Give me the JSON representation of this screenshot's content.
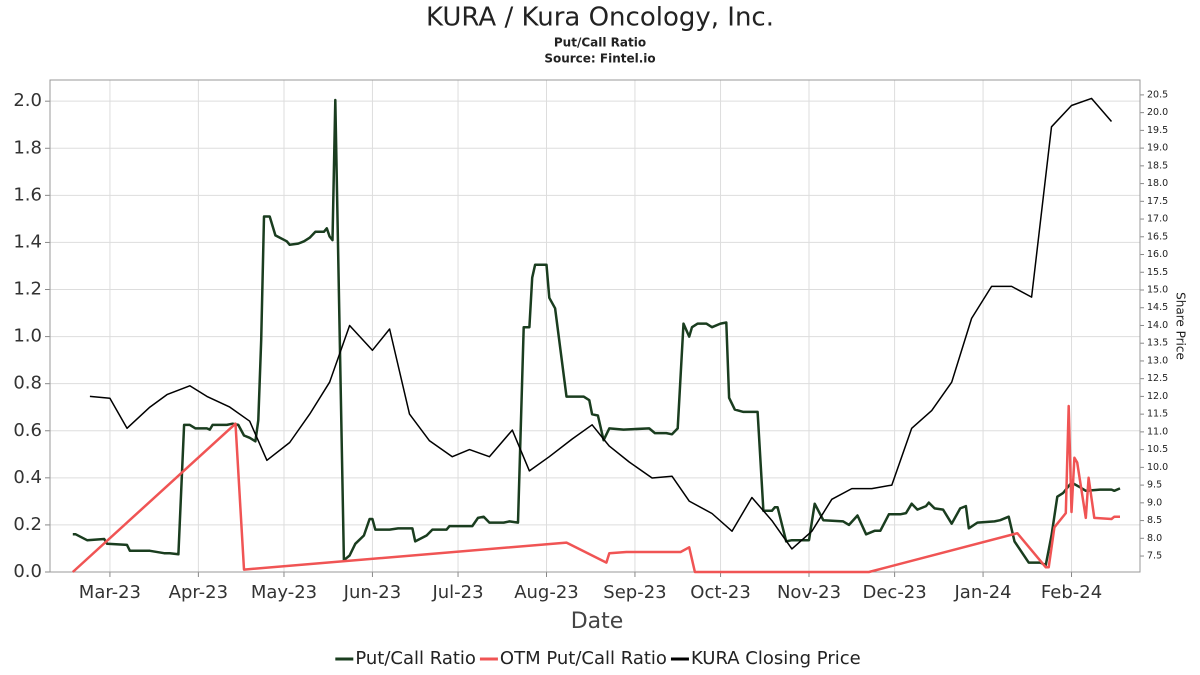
{
  "chart_data": {
    "type": "line",
    "title": "KURA / Kura Oncology, Inc.",
    "subtitle": "Put/Call Ratio",
    "source": "Source: Fintel.io",
    "xlabel": "Date",
    "y2label": "Share Price",
    "grid": true,
    "legend": "bottom",
    "xlim": [
      -21,
      361
    ],
    "xticks": [
      {
        "value": 0,
        "label": "Mar-23"
      },
      {
        "value": 31,
        "label": "Apr-23"
      },
      {
        "value": 61,
        "label": "May-23"
      },
      {
        "value": 92,
        "label": "Jun-23"
      },
      {
        "value": 122,
        "label": "Jul-23"
      },
      {
        "value": 153,
        "label": "Aug-23"
      },
      {
        "value": 184,
        "label": "Sep-23"
      },
      {
        "value": 214,
        "label": "Oct-23"
      },
      {
        "value": 245,
        "label": "Nov-23"
      },
      {
        "value": 275,
        "label": "Dec-23"
      },
      {
        "value": 306,
        "label": "Jan-24"
      },
      {
        "value": 337,
        "label": "Feb-24"
      }
    ],
    "ylim": [
      0,
      2.09
    ],
    "yticks": [
      {
        "value": 0,
        "label": "0.0"
      },
      0.2,
      0.4,
      0.6,
      0.8,
      {
        "value": 1,
        "label": "1.0"
      },
      1.2,
      1.4,
      1.6,
      1.8,
      {
        "value": 2,
        "label": "2.0"
      }
    ],
    "y2lim": [
      7.05,
      20.92
    ],
    "y2ticks": [
      7.5,
      {
        "value": 8,
        "label": "8.0"
      },
      8.5,
      {
        "value": 9,
        "label": "9.0"
      },
      9.5,
      {
        "value": 10,
        "label": "10.0"
      },
      10.5,
      {
        "value": 11,
        "label": "11.0"
      },
      11.5,
      {
        "value": 12,
        "label": "12.0"
      },
      12.5,
      {
        "value": 13,
        "label": "13.0"
      },
      13.5,
      {
        "value": 14,
        "label": "14.0"
      },
      14.5,
      {
        "value": 15,
        "label": "15.0"
      },
      15.5,
      {
        "value": 16,
        "label": "16.0"
      },
      16.5,
      {
        "value": 17,
        "label": "17.0"
      },
      17.5,
      {
        "value": 18,
        "label": "18.0"
      },
      18.5,
      {
        "value": 19,
        "label": "19.0"
      },
      19.5,
      {
        "value": 20,
        "label": "20.0"
      },
      20.5
    ],
    "series": [
      {
        "name": "Put/Call Ratio",
        "color": "#1a3d1f",
        "width": 2.5,
        "x": [
          -13,
          -12,
          -8,
          -2,
          -1,
          6,
          7,
          14,
          19,
          21,
          24,
          26,
          28,
          30,
          34,
          35,
          36,
          41,
          43,
          45,
          47,
          49,
          51,
          52,
          53,
          54,
          56,
          58,
          62,
          63,
          66,
          68,
          70,
          72,
          75,
          76,
          77,
          78,
          79,
          82,
          84,
          86,
          89,
          91,
          92,
          93,
          98,
          101,
          106,
          107,
          111,
          113,
          118,
          119,
          127,
          129,
          131,
          133,
          138,
          140,
          143,
          145,
          147,
          148,
          149,
          153,
          154,
          156,
          160,
          162,
          166,
          168,
          169,
          171,
          173,
          175,
          180,
          189,
          191,
          195,
          197,
          199,
          201,
          203,
          204,
          206,
          209,
          211,
          214,
          216,
          217,
          219,
          222,
          227,
          229,
          232,
          233,
          234,
          237,
          239,
          245,
          247,
          250,
          257,
          259,
          262,
          265,
          268,
          270,
          273,
          277,
          279,
          281,
          283,
          286,
          287,
          289,
          292,
          295,
          298,
          300,
          301,
          304,
          310,
          312,
          315,
          317,
          322,
          326,
          328,
          330,
          332,
          334,
          337,
          340,
          342,
          347,
          351,
          352,
          354
        ],
        "values": [
          0.16,
          0.16,
          0.135,
          0.14,
          0.12,
          0.115,
          0.09,
          0.09,
          0.08,
          0.08,
          0.075,
          0.625,
          0.625,
          0.61,
          0.61,
          0.605,
          0.625,
          0.625,
          0.63,
          0.625,
          0.58,
          0.57,
          0.555,
          0.645,
          0.985,
          1.51,
          1.51,
          1.43,
          1.405,
          1.39,
          1.395,
          1.405,
          1.42,
          1.445,
          1.445,
          1.46,
          1.425,
          1.41,
          2.005,
          0.05,
          0.07,
          0.12,
          0.155,
          0.225,
          0.225,
          0.18,
          0.18,
          0.185,
          0.185,
          0.13,
          0.155,
          0.18,
          0.18,
          0.195,
          0.195,
          0.23,
          0.235,
          0.21,
          0.21,
          0.215,
          0.21,
          1.04,
          1.04,
          1.25,
          1.305,
          1.305,
          1.165,
          1.12,
          0.745,
          0.745,
          0.745,
          0.73,
          0.67,
          0.665,
          0.56,
          0.61,
          0.605,
          0.61,
          0.59,
          0.59,
          0.585,
          0.61,
          1.055,
          1.0,
          1.04,
          1.055,
          1.055,
          1.04,
          1.055,
          1.06,
          0.74,
          0.69,
          0.68,
          0.68,
          0.26,
          0.26,
          0.275,
          0.275,
          0.13,
          0.135,
          0.135,
          0.29,
          0.22,
          0.215,
          0.2,
          0.24,
          0.16,
          0.175,
          0.175,
          0.245,
          0.245,
          0.25,
          0.29,
          0.265,
          0.28,
          0.295,
          0.27,
          0.265,
          0.205,
          0.27,
          0.28,
          0.185,
          0.21,
          0.215,
          0.22,
          0.235,
          0.13,
          0.04,
          0.04,
          0.03,
          0.155,
          0.32,
          0.335,
          0.38,
          0.36,
          0.345,
          0.35,
          0.35,
          0.345,
          0.355
        ]
      },
      {
        "name": "OTM Put/Call Ratio",
        "color": "#f05454",
        "width": 2.5,
        "x": [
          -13,
          44,
          47,
          160,
          174,
          175,
          181,
          200,
          203,
          205,
          266,
          318,
          328,
          329,
          331,
          335,
          336,
          337,
          338,
          339,
          342,
          343,
          345,
          351,
          352,
          354
        ],
        "values": [
          0,
          0.63,
          0.01,
          0.125,
          0.04,
          0.08,
          0.085,
          0.085,
          0.105,
          0,
          0,
          0.165,
          0.02,
          0.02,
          0.19,
          0.25,
          0.705,
          0.255,
          0.485,
          0.465,
          0.23,
          0.4,
          0.23,
          0.225,
          0.235,
          0.235
        ]
      },
      {
        "name": "KURA Closing Price",
        "color": "#000000",
        "width": 1.5,
        "axis": "y2",
        "x": [
          -7,
          0,
          6,
          14,
          20,
          28,
          34,
          42,
          49,
          55,
          63,
          70,
          77,
          84,
          92,
          98,
          105,
          112,
          120,
          126,
          133,
          141,
          147,
          154,
          162,
          169,
          175,
          182,
          190,
          197,
          203,
          211,
          218,
          225,
          232,
          239,
          246,
          253,
          260,
          267,
          274,
          281,
          288,
          295,
          302,
          309,
          316,
          323,
          330,
          337,
          344,
          351
        ],
        "values": [
          12.0,
          11.95,
          11.1,
          11.7,
          12.05,
          12.3,
          12.0,
          11.7,
          11.3,
          10.2,
          10.7,
          11.5,
          12.4,
          14.0,
          13.3,
          13.9,
          11.5,
          10.75,
          10.3,
          10.5,
          10.3,
          11.05,
          9.9,
          10.3,
          10.8,
          11.2,
          10.6,
          10.15,
          9.7,
          9.75,
          9.05,
          8.7,
          8.2,
          9.15,
          8.5,
          7.7,
          8.2,
          9.1,
          9.4,
          9.4,
          9.5,
          11.1,
          11.6,
          12.4,
          14.2,
          15.1,
          15.1,
          14.8,
          19.6,
          20.2,
          20.4,
          19.75
        ]
      }
    ]
  }
}
